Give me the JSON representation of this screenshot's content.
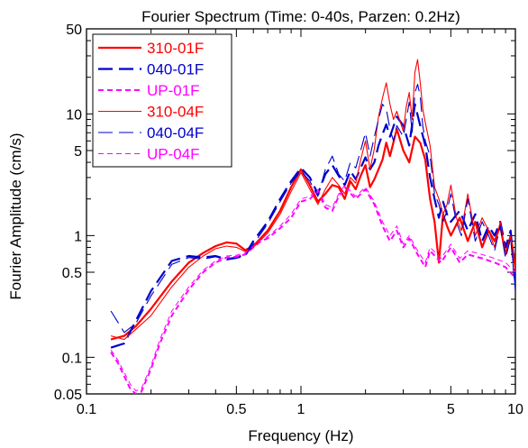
{
  "chart_data": {
    "type": "line",
    "title": "Fourier Spectrum (Time: 0-40s, Parzen: 0.2Hz)",
    "xlabel": "Frequency (Hz)",
    "ylabel": "Fourier Amplitude (cm/s)",
    "xscale": "log",
    "yscale": "log",
    "xlim": [
      0.1,
      10
    ],
    "ylim": [
      0.05,
      50
    ],
    "x_ticks": [
      0.1,
      0.5,
      1,
      5,
      10
    ],
    "x_tick_labels": [
      "0.1",
      "0.5",
      "1",
      "5",
      "10"
    ],
    "y_ticks": [
      0.05,
      0.1,
      0.5,
      1,
      5,
      10,
      50
    ],
    "y_tick_labels": [
      "0.05",
      "0.1",
      "0.5",
      "1",
      "5",
      "10",
      "50"
    ],
    "grid": false,
    "legend_position": "top-left",
    "series": [
      {
        "name": "310-01F",
        "color": "#ff0000",
        "dash": "solid",
        "stroke_width": 2.2,
        "x": [
          0.13,
          0.15,
          0.17,
          0.2,
          0.25,
          0.3,
          0.35,
          0.4,
          0.45,
          0.5,
          0.55,
          0.6,
          0.7,
          0.8,
          0.9,
          1.0,
          1.1,
          1.2,
          1.3,
          1.4,
          1.5,
          1.6,
          1.7,
          1.8,
          1.9,
          2.0,
          2.1,
          2.2,
          2.3,
          2.4,
          2.5,
          2.6,
          2.8,
          3.0,
          3.2,
          3.4,
          3.6,
          3.8,
          4.0,
          4.2,
          4.4,
          4.6,
          4.8,
          5.0,
          5.5,
          6.0,
          6.5,
          7.0,
          7.5,
          8.0,
          8.5,
          9.0,
          9.5,
          10.0
        ],
        "y": [
          0.14,
          0.15,
          0.18,
          0.25,
          0.42,
          0.6,
          0.72,
          0.82,
          0.88,
          0.86,
          0.76,
          0.82,
          1.1,
          1.6,
          2.5,
          3.5,
          2.6,
          1.9,
          2.2,
          2.6,
          2.5,
          2.0,
          2.8,
          2.4,
          3.1,
          3.8,
          2.5,
          2.9,
          3.5,
          4.2,
          5.8,
          4.5,
          7.5,
          5.0,
          4.0,
          6.5,
          5.8,
          4.2,
          2.0,
          1.3,
          0.6,
          1.5,
          1.2,
          1.0,
          1.4,
          0.9,
          1.3,
          0.8,
          1.1,
          0.9,
          1.2,
          0.7,
          1.0,
          0.55
        ]
      },
      {
        "name": "040-01F",
        "color": "#0000cc",
        "dash": "long-dash",
        "stroke_width": 2.2,
        "x": [
          0.13,
          0.15,
          0.17,
          0.2,
          0.25,
          0.3,
          0.35,
          0.4,
          0.45,
          0.5,
          0.55,
          0.6,
          0.7,
          0.8,
          0.9,
          1.0,
          1.1,
          1.2,
          1.3,
          1.4,
          1.5,
          1.6,
          1.7,
          1.8,
          1.9,
          2.0,
          2.1,
          2.2,
          2.3,
          2.4,
          2.5,
          2.6,
          2.8,
          3.0,
          3.2,
          3.4,
          3.6,
          3.8,
          4.0,
          4.2,
          4.4,
          4.6,
          4.8,
          5.0,
          5.5,
          6.0,
          6.5,
          7.0,
          7.5,
          8.0,
          8.5,
          9.0,
          9.5,
          10.0
        ],
        "y": [
          0.12,
          0.13,
          0.2,
          0.35,
          0.62,
          0.68,
          0.66,
          0.68,
          0.64,
          0.66,
          0.7,
          0.9,
          1.3,
          2.0,
          2.8,
          3.6,
          3.0,
          2.2,
          3.2,
          3.8,
          3.1,
          2.6,
          3.4,
          2.9,
          3.6,
          4.4,
          3.5,
          4.0,
          5.5,
          6.8,
          8.2,
          6.5,
          9.5,
          8.0,
          5.5,
          12.0,
          8.0,
          5.5,
          3.0,
          2.0,
          1.4,
          1.9,
          1.5,
          1.3,
          1.6,
          1.1,
          1.5,
          0.9,
          1.2,
          1.0,
          1.3,
          0.8,
          1.1,
          0.4
        ]
      },
      {
        "name": "UP-01F",
        "color": "#ff00ff",
        "dash": "short-dash",
        "stroke_width": 2.0,
        "x": [
          0.13,
          0.14,
          0.15,
          0.16,
          0.17,
          0.18,
          0.2,
          0.22,
          0.25,
          0.3,
          0.35,
          0.4,
          0.45,
          0.5,
          0.55,
          0.6,
          0.65,
          0.7,
          0.8,
          0.9,
          1.0,
          1.1,
          1.2,
          1.3,
          1.4,
          1.5,
          1.6,
          1.8,
          2.0,
          2.2,
          2.4,
          2.6,
          2.8,
          3.0,
          3.2,
          3.5,
          3.8,
          4.0,
          4.5,
          5.0,
          5.5,
          6.0,
          7.0,
          8.0,
          9.0,
          10.0
        ],
        "y": [
          0.11,
          0.09,
          0.07,
          0.055,
          0.05,
          0.052,
          0.08,
          0.13,
          0.22,
          0.36,
          0.5,
          0.6,
          0.66,
          0.67,
          0.7,
          0.8,
          0.9,
          0.95,
          1.15,
          1.4,
          1.9,
          2.0,
          2.3,
          1.7,
          1.6,
          2.1,
          2.5,
          2.0,
          2.4,
          1.8,
          1.2,
          0.9,
          1.1,
          0.8,
          0.95,
          0.7,
          0.55,
          0.75,
          0.6,
          0.8,
          0.6,
          0.7,
          0.65,
          0.6,
          0.55,
          0.45
        ]
      },
      {
        "name": "310-04F",
        "color": "#ff0000",
        "dash": "solid",
        "stroke_width": 1.1,
        "x": [
          0.13,
          0.15,
          0.17,
          0.2,
          0.25,
          0.3,
          0.35,
          0.4,
          0.45,
          0.5,
          0.55,
          0.6,
          0.7,
          0.8,
          0.9,
          1.0,
          1.1,
          1.2,
          1.3,
          1.4,
          1.5,
          1.6,
          1.7,
          1.8,
          1.9,
          2.0,
          2.1,
          2.2,
          2.3,
          2.4,
          2.5,
          2.6,
          2.7,
          2.8,
          3.0,
          3.1,
          3.2,
          3.3,
          3.4,
          3.5,
          3.6,
          3.7,
          3.8,
          4.0,
          4.2,
          4.4,
          4.6,
          4.8,
          5.0,
          5.3,
          5.6,
          6.0,
          6.5,
          7.0,
          7.5,
          8.0,
          8.5,
          9.0,
          9.5,
          10.0
        ],
        "y": [
          0.15,
          0.14,
          0.17,
          0.22,
          0.38,
          0.55,
          0.68,
          0.78,
          0.82,
          0.8,
          0.74,
          0.8,
          1.05,
          1.5,
          2.3,
          3.3,
          2.4,
          1.8,
          2.4,
          3.0,
          2.6,
          2.2,
          3.0,
          2.7,
          4.2,
          6.0,
          3.5,
          5.2,
          9.5,
          13.5,
          18.0,
          12.0,
          9.0,
          10.5,
          7.2,
          11.5,
          15.0,
          9.0,
          22.0,
          28.0,
          18.0,
          11.0,
          8.5,
          5.5,
          2.5,
          2.0,
          1.5,
          1.8,
          2.6,
          1.4,
          1.1,
          2.2,
          1.0,
          1.4,
          1.1,
          0.8,
          1.3,
          0.7,
          1.0,
          0.5
        ]
      },
      {
        "name": "040-04F",
        "color": "#0000cc",
        "dash": "long-dash",
        "stroke_width": 1.1,
        "x": [
          0.13,
          0.15,
          0.17,
          0.2,
          0.25,
          0.3,
          0.35,
          0.4,
          0.45,
          0.5,
          0.55,
          0.6,
          0.7,
          0.8,
          0.9,
          1.0,
          1.1,
          1.2,
          1.3,
          1.4,
          1.5,
          1.6,
          1.7,
          1.8,
          1.9,
          2.0,
          2.1,
          2.2,
          2.3,
          2.4,
          2.5,
          2.6,
          2.7,
          2.8,
          3.0,
          3.1,
          3.2,
          3.3,
          3.4,
          3.5,
          3.6,
          3.7,
          3.8,
          4.0,
          4.2,
          4.4,
          4.6,
          4.8,
          5.0,
          5.3,
          5.6,
          6.0,
          6.5,
          7.0,
          7.5,
          8.0,
          8.5,
          9.0,
          9.5,
          10.0
        ],
        "y": [
          0.24,
          0.16,
          0.19,
          0.32,
          0.58,
          0.66,
          0.64,
          0.67,
          0.63,
          0.65,
          0.68,
          0.85,
          1.25,
          1.9,
          2.7,
          3.4,
          2.8,
          2.1,
          3.5,
          4.5,
          3.2,
          2.8,
          4.0,
          3.6,
          5.0,
          7.0,
          4.5,
          6.5,
          9.0,
          12.0,
          11.0,
          7.5,
          6.0,
          8.0,
          6.5,
          9.0,
          12.5,
          7.0,
          15.0,
          17.5,
          14.0,
          8.0,
          6.0,
          4.5,
          2.2,
          1.8,
          1.3,
          1.6,
          2.2,
          1.3,
          1.0,
          2.0,
          0.9,
          1.3,
          1.0,
          0.75,
          1.2,
          0.65,
          0.95,
          0.35
        ]
      },
      {
        "name": "UP-04F",
        "color": "#ff00ff",
        "dash": "short-dash",
        "stroke_width": 1.0,
        "x": [
          0.13,
          0.14,
          0.15,
          0.16,
          0.17,
          0.18,
          0.2,
          0.22,
          0.25,
          0.3,
          0.35,
          0.4,
          0.45,
          0.5,
          0.55,
          0.6,
          0.65,
          0.7,
          0.8,
          0.9,
          1.0,
          1.1,
          1.2,
          1.3,
          1.4,
          1.5,
          1.6,
          1.8,
          2.0,
          2.2,
          2.4,
          2.6,
          2.8,
          3.0,
          3.2,
          3.5,
          3.8,
          4.0,
          4.5,
          5.0,
          5.5,
          6.0,
          7.0,
          8.0,
          9.0,
          10.0
        ],
        "y": [
          0.115,
          0.095,
          0.075,
          0.06,
          0.053,
          0.055,
          0.085,
          0.14,
          0.24,
          0.38,
          0.52,
          0.62,
          0.68,
          0.69,
          0.72,
          0.82,
          0.92,
          0.98,
          1.2,
          1.5,
          2.0,
          2.1,
          2.4,
          1.8,
          1.7,
          2.2,
          2.6,
          2.1,
          2.5,
          1.9,
          1.3,
          1.0,
          1.2,
          0.85,
          1.0,
          0.75,
          0.6,
          0.8,
          0.65,
          0.85,
          0.65,
          0.75,
          0.7,
          0.65,
          0.6,
          0.5
        ]
      }
    ]
  }
}
